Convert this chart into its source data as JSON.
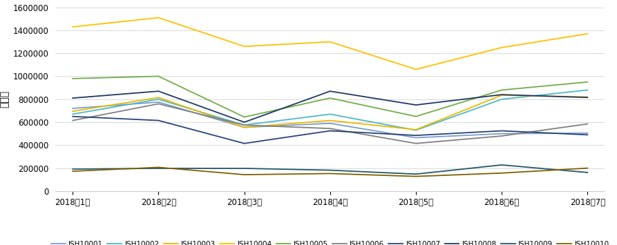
{
  "months": [
    "2018年1月",
    "2018年2月",
    "2018年3月",
    "2018年4月",
    "2018年5月",
    "2018年6月",
    "2018年7月"
  ],
  "series": [
    {
      "name": "JSH10001",
      "values": [
        720000,
        775000,
        555000,
        590000,
        465000,
        500000,
        505000
      ],
      "color": "#7B9CD0"
    },
    {
      "name": "JSH10002",
      "values": [
        670000,
        800000,
        575000,
        670000,
        530000,
        800000,
        880000
      ],
      "color": "#4CB8C8"
    },
    {
      "name": "JSH10003",
      "values": [
        695000,
        815000,
        555000,
        615000,
        535000,
        835000,
        820000
      ],
      "color": "#E8B800"
    },
    {
      "name": "JSH10004",
      "values": [
        1430000,
        1510000,
        1260000,
        1300000,
        1060000,
        1250000,
        1370000
      ],
      "color": "#FFC000"
    },
    {
      "name": "JSH10005",
      "values": [
        980000,
        1000000,
        645000,
        810000,
        650000,
        880000,
        950000
      ],
      "color": "#70AD47"
    },
    {
      "name": "JSH10006",
      "values": [
        615000,
        760000,
        575000,
        545000,
        415000,
        480000,
        585000
      ],
      "color": "#808080"
    },
    {
      "name": "JSH10007",
      "values": [
        650000,
        615000,
        415000,
        525000,
        485000,
        525000,
        490000
      ],
      "color": "#264478"
    },
    {
      "name": "JSH10008",
      "values": [
        810000,
        870000,
        600000,
        870000,
        750000,
        840000,
        815000
      ],
      "color": "#1F3864"
    },
    {
      "name": "JSH10009",
      "values": [
        192000,
        198000,
        198000,
        182000,
        148000,
        228000,
        162000
      ],
      "color": "#215868"
    },
    {
      "name": "JSH10010",
      "values": [
        173000,
        207000,
        143000,
        153000,
        128000,
        157000,
        200000
      ],
      "color": "#7F6000"
    }
  ],
  "ylabel": "销售额",
  "ylim": [
    0,
    1600000
  ],
  "yticks": [
    0,
    200000,
    400000,
    600000,
    800000,
    1000000,
    1200000,
    1400000,
    1600000
  ],
  "background_color": "#ffffff",
  "grid_color": "#D9D9D9",
  "tick_fontsize": 8.5,
  "legend_fontsize": 7.5,
  "figsize": [
    8.93,
    3.55
  ],
  "dpi": 100
}
